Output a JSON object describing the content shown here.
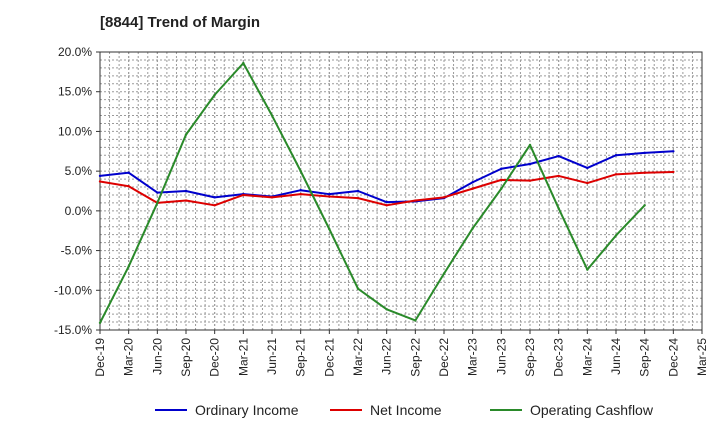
{
  "title": "[8844]  Trend of Margin",
  "chart_data": {
    "type": "line",
    "title": "[8844]  Trend of Margin",
    "xlabel": "",
    "ylabel": "",
    "categories": [
      "Dec-19",
      "Mar-20",
      "Jun-20",
      "Sep-20",
      "Dec-20",
      "Mar-21",
      "Jun-21",
      "Sep-21",
      "Dec-21",
      "Mar-22",
      "Jun-22",
      "Sep-22",
      "Dec-22",
      "Mar-23",
      "Jun-23",
      "Sep-23",
      "Dec-23",
      "Mar-24",
      "Jun-24",
      "Sep-24",
      "Dec-24",
      "Mar-25"
    ],
    "ylim": [
      -15,
      20
    ],
    "yticks": [
      20,
      15,
      10,
      5,
      0,
      -5,
      -10,
      -15
    ],
    "ytick_labels": [
      "20.0%",
      "15.0%",
      "10.0%",
      "5.0%",
      "0.0%",
      "-5.0%",
      "-10.0%",
      "-15.0%"
    ],
    "grid": true,
    "legend_position": "bottom",
    "series": [
      {
        "name": "Ordinary Income",
        "color": "#0000cc",
        "values": [
          4.4,
          4.8,
          2.3,
          2.5,
          1.7,
          2.1,
          1.8,
          2.6,
          2.1,
          2.5,
          1.1,
          1.2,
          1.6,
          3.6,
          5.3,
          5.9,
          6.9,
          5.4,
          7.0,
          7.3,
          7.5,
          null
        ]
      },
      {
        "name": "Net Income",
        "color": "#dd0000",
        "values": [
          3.7,
          3.1,
          1.0,
          1.3,
          0.7,
          2.0,
          1.7,
          2.1,
          1.8,
          1.6,
          0.7,
          1.3,
          1.7,
          2.8,
          3.9,
          3.8,
          4.4,
          3.5,
          4.6,
          4.8,
          4.9,
          null
        ]
      },
      {
        "name": "Operating Cashflow",
        "color": "#2a8a2a",
        "values": [
          -14.1,
          -7.0,
          1.0,
          9.6,
          14.6,
          18.6,
          12.0,
          5.0,
          -2.3,
          -9.8,
          -12.4,
          -13.8,
          -7.9,
          -2.2,
          2.8,
          8.3,
          0.3,
          -7.4,
          -3.1,
          0.7,
          null,
          null
        ]
      }
    ]
  }
}
